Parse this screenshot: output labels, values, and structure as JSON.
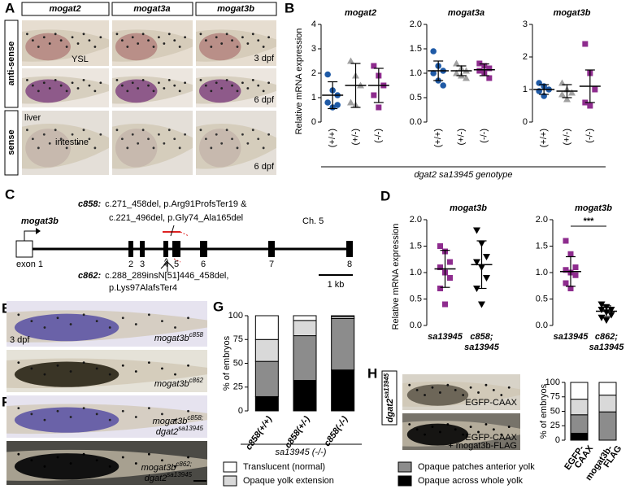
{
  "figure": {
    "panel_labels": [
      "A",
      "B",
      "C",
      "D",
      "E",
      "F",
      "G",
      "H"
    ],
    "panel_a": {
      "columns": [
        "mogat2",
        "mogat3a",
        "mogat3b"
      ],
      "rows": [
        "anti-sense",
        "sense"
      ],
      "ysl": "YSL",
      "stage_1": "3 dpf",
      "stage_2": "6 dpf",
      "stage_3": "6 dpf",
      "liver": "liver",
      "intestine": "intestine"
    },
    "panel_b": {
      "ylabel": "Relative mRNA expression",
      "xlabel": "dgat2 sa13945 genotype"
    },
    "panel_c": {
      "gene": "mogat3b",
      "chromosome": "Ch. 5",
      "exon1": "exon 1",
      "exons": [
        "2",
        "3",
        "4",
        "5",
        "6",
        "7",
        "8"
      ],
      "c858_label": "c858:",
      "c858_line1": "c.271_458del, p.Arg91ProfsTer19 &",
      "c858_line2": "c.221_496del, p.Gly74_Ala165del",
      "c862_label": "c862:",
      "c862_line1": "c.288_289insN[51]446_458del,",
      "c862_line2": "p.Lys97AlafsTer4",
      "scale": "1 kb"
    },
    "panel_d": {
      "ylabel": "Relative mRNA expression"
    },
    "panel_e": {
      "stage": "3 dpf",
      "labels": [
        {
          "gene": "mogat3b",
          "allele": "c858"
        },
        {
          "gene": "mogat3b",
          "allele": "c862"
        }
      ]
    },
    "panel_f": {
      "labels": [
        {
          "gene": "mogat3b",
          "allele": "c858;",
          "gene2": "dgat2",
          "allele2": "sa13945"
        },
        {
          "gene": "mogat3b",
          "allele": "c862;",
          "gene2": "dgat2",
          "allele2": "sa13945"
        }
      ]
    },
    "panel_g": {
      "group": "sa13945 (-/-)"
    },
    "panel_h": {
      "side_gene": "dgat2",
      "side_allele": "sa13945",
      "image_1": "EGFP-CAAX",
      "image_2_line1": "EGFP-CAAX",
      "image_2_line2": "+ mogat3b-FLAG"
    }
  },
  "chart_data": [
    {
      "type": "dot",
      "title": "mogat2",
      "categories": [
        "(+/+)",
        "(+/-)",
        "(-/-)"
      ],
      "markers": [
        "circle",
        "triangle",
        "square"
      ],
      "colors": [
        "#1f5aa6",
        "#a0a0a0",
        "#8e2c8e"
      ],
      "values": [
        [
          1.95,
          1.3,
          1.1,
          0.8,
          0.6,
          0.7
        ],
        [
          2.5,
          1.9,
          1.5,
          0.8,
          0.7
        ],
        [
          2.3,
          1.9,
          1.5,
          1.1,
          0.6
        ]
      ],
      "mean": [
        1.1,
        1.5,
        1.5
      ],
      "sd": [
        0.55,
        0.9,
        0.7
      ],
      "ylim": [
        0,
        4
      ],
      "yticks": [
        0,
        1,
        2,
        3,
        4
      ]
    },
    {
      "type": "dot",
      "title": "mogat3a",
      "categories": [
        "(+/+)",
        "(+/-)",
        "(-/-)"
      ],
      "markers": [
        "circle",
        "triangle",
        "square"
      ],
      "colors": [
        "#1f5aa6",
        "#a0a0a0",
        "#8e2c8e"
      ],
      "values": [
        [
          1.45,
          1.15,
          1.05,
          1.0,
          0.85,
          0.75
        ],
        [
          1.2,
          1.1,
          1.05,
          1.0,
          0.95,
          0.9
        ],
        [
          1.2,
          1.15,
          1.1,
          1.05,
          1.0,
          0.9
        ]
      ],
      "mean": [
        1.05,
        1.05,
        1.07
      ],
      "sd": [
        0.2,
        0.1,
        0.12
      ],
      "ylim": [
        0,
        2
      ],
      "yticks": [
        {
          "value": 0,
          "label": "0.0"
        },
        0.5,
        {
          "value": 1,
          "label": "1.0"
        },
        1.5,
        {
          "value": 2,
          "label": "2.0"
        }
      ]
    },
    {
      "type": "dot",
      "title": "mogat3b",
      "categories": [
        "(+/+)",
        "(+/-)",
        "(-/-)"
      ],
      "markers": [
        "circle",
        "triangle",
        "square"
      ],
      "colors": [
        "#1f5aa6",
        "#a0a0a0",
        "#8e2c8e"
      ],
      "values": [
        [
          1.2,
          1.1,
          1.0,
          0.95,
          0.8
        ],
        [
          1.2,
          1.0,
          0.9,
          0.85,
          0.7
        ],
        [
          2.4,
          1.5,
          1.0,
          0.6,
          0.5
        ]
      ],
      "mean": [
        1.0,
        0.95,
        1.1
      ],
      "sd": [
        0.15,
        0.2,
        0.5
      ],
      "ylim": [
        0,
        3
      ],
      "yticks": [
        0,
        1,
        2,
        3
      ]
    },
    {
      "type": "dot",
      "title": "mogat3b",
      "categories": [
        [
          "sa13945"
        ],
        [
          "c858;",
          "sa13945"
        ]
      ],
      "markers": [
        "square",
        "triangle-down"
      ],
      "colors": [
        "#8e2c8e",
        "#000000"
      ],
      "values": [
        [
          1.5,
          1.4,
          1.2,
          1.1,
          1.0,
          0.9,
          0.7,
          0.4
        ],
        [
          1.8,
          1.55,
          1.3,
          1.2,
          1.1,
          0.9,
          0.7,
          0.4
        ]
      ],
      "mean": [
        1.07,
        1.15
      ],
      "sd": [
        0.35,
        0.45
      ],
      "ylim": [
        0,
        2
      ],
      "yticks": [
        {
          "value": 0,
          "label": "0.0"
        },
        0.5,
        {
          "value": 1,
          "label": "1.0"
        },
        1.5,
        {
          "value": 2,
          "label": "2.0"
        }
      ]
    },
    {
      "type": "dot",
      "title": "mogat3b",
      "categories": [
        [
          "sa13945"
        ],
        [
          "c862;",
          "sa13945"
        ]
      ],
      "markers": [
        "square",
        "triangle-down"
      ],
      "colors": [
        "#8e2c8e",
        "#000000"
      ],
      "values": [
        [
          1.6,
          1.35,
          1.1,
          1.05,
          1.0,
          0.95,
          0.8,
          0.7
        ],
        [
          0.4,
          0.35,
          0.3,
          0.3,
          0.25,
          0.2,
          0.15,
          0.1
        ]
      ],
      "mean": [
        1.02,
        0.27
      ],
      "sd": [
        0.28,
        0.1
      ],
      "annotation": "***",
      "ylim": [
        0,
        2
      ],
      "yticks": [
        {
          "value": 0,
          "label": "0.0"
        },
        0.5,
        {
          "value": 1,
          "label": "1.0"
        },
        1.5,
        {
          "value": 2,
          "label": "2.0"
        }
      ]
    },
    {
      "type": "stacked_bar",
      "ylabel": "% of embryos",
      "categories": [
        [
          "c858(+/+)"
        ],
        [
          "c858(+/-)"
        ],
        [
          "c858(-/-)"
        ]
      ],
      "series": [
        {
          "name": "Translucent (normal)",
          "color": "#ffffff",
          "values": [
            25,
            5,
            1
          ]
        },
        {
          "name": "Opaque yolk extension",
          "color": "#d9d9d9",
          "values": [
            23,
            16,
            2
          ]
        },
        {
          "name": "Opaque patches anterior yolk",
          "color": "#8c8c8c",
          "values": [
            37,
            47,
            54
          ]
        },
        {
          "name": "Opaque across whole yolk",
          "color": "#000000",
          "values": [
            15,
            32,
            43
          ]
        }
      ],
      "ylim": [
        0,
        100
      ],
      "yticks": [
        0,
        25,
        50,
        75,
        100
      ],
      "legend": "bottom"
    },
    {
      "type": "stacked_bar",
      "ylabel": "% of embryos",
      "categories": [
        [
          "EGFP-",
          "CAAX"
        ],
        [
          "mogat3b-",
          "FLAG"
        ]
      ],
      "series": [
        {
          "color": "#ffffff",
          "values": [
            29,
            22
          ]
        },
        {
          "color": "#d9d9d9",
          "values": [
            27,
            29
          ]
        },
        {
          "color": "#8c8c8c",
          "values": [
            32,
            49
          ]
        },
        {
          "color": "#000000",
          "values": [
            12,
            0
          ]
        }
      ],
      "ylim": [
        0,
        100
      ],
      "yticks": [
        0,
        25,
        50,
        75,
        100
      ]
    }
  ]
}
